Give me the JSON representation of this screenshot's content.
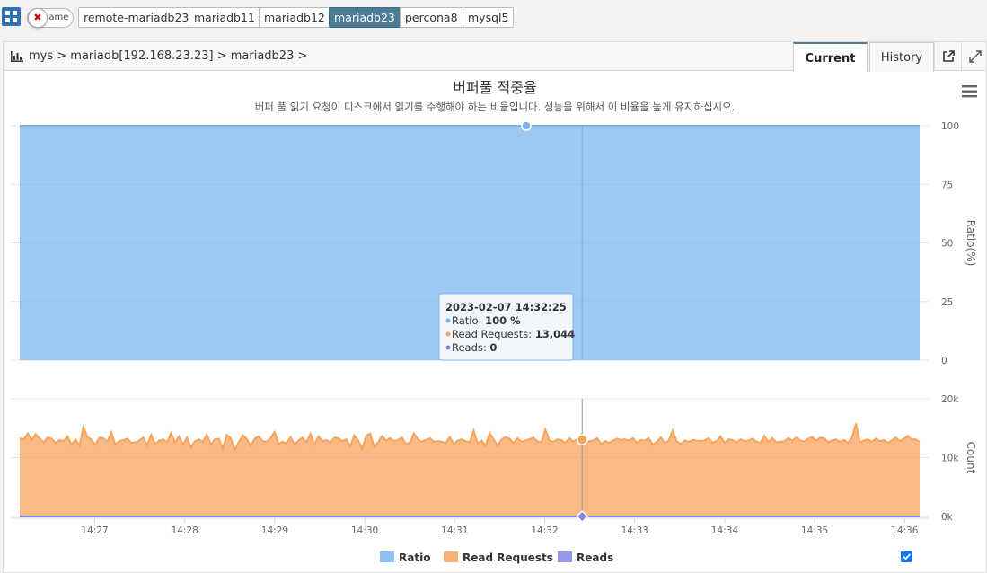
{
  "instances": {
    "name_toggle_label": "name",
    "items": [
      "remote-mariadb23",
      "mariadb11",
      "mariadb12",
      "mariadb23",
      "percona8",
      "mysql5"
    ],
    "active": "mariadb23"
  },
  "breadcrumb": "mys > mariadb[192.168.23.23] > mariadb23 >",
  "tabs": {
    "current": "Current",
    "history": "History"
  },
  "chart_data": {
    "type": "area",
    "title": "버퍼풀 적중율",
    "subtitle": "버퍼 풀 읽기 요청이 디스크에서 읽기를 수행해야 하는 비율입니다. 성능을 위해서 이 비율을 높게 유지하십시오.",
    "x_ticks": [
      "14:27",
      "14:28",
      "14:29",
      "14:30",
      "14:31",
      "14:32",
      "14:33",
      "14:34",
      "14:35",
      "14:36"
    ],
    "x_start": "14:26:10",
    "x_end": "14:36:10",
    "panes": [
      {
        "ylabel": "Ratio(%)",
        "ylim": [
          0,
          100
        ],
        "y_ticks": [
          "100",
          "75",
          "50",
          "25",
          "0"
        ],
        "series": [
          "Ratio"
        ]
      },
      {
        "ylabel": "Count",
        "ylim": [
          0,
          20000
        ],
        "y_ticks": [
          "20k",
          "10k",
          "0k"
        ],
        "series": [
          "Read Requests",
          "Reads"
        ]
      }
    ],
    "series": [
      {
        "name": "Ratio",
        "color": "#7cb5ec",
        "pane": 0,
        "values": [
          100
        ]
      },
      {
        "name": "Read Requests",
        "color": "#f7a35c",
        "pane": 1,
        "values": [
          13300,
          13100,
          14100,
          13000,
          14000,
          13200,
          12600,
          13400,
          13200,
          12500,
          13000,
          12800,
          13600,
          12200,
          13100,
          12000,
          15200,
          13500,
          13000,
          12200,
          13400,
          13300,
          12700,
          14300,
          12200,
          12800,
          13000,
          13200,
          12500,
          12600,
          12900,
          13400,
          12100,
          13900,
          12300,
          12900,
          13100,
          12600,
          14200,
          12500,
          13600,
          12200,
          13400,
          11700,
          12800,
          13100,
          12700,
          13900,
          12200,
          13100,
          13200,
          11500,
          13900,
          13300,
          11300,
          12600,
          13800,
          13200,
          11900,
          13200,
          13600,
          12800,
          12700,
          13300,
          14400,
          12300,
          12700,
          12400,
          13500,
          12200,
          12900,
          13400,
          12600,
          14000,
          12200,
          13600,
          12800,
          13000,
          12500,
          13400,
          13300,
          12800,
          13100,
          11900,
          13800,
          12900,
          11500,
          13700,
          14100,
          11800,
          12600,
          13700,
          12900,
          13300,
          12800,
          13000,
          13400,
          12300,
          12600,
          14100,
          13100,
          12700,
          13000,
          13300,
          12700,
          12800,
          12700,
          12500,
          13500,
          12300,
          12900,
          13100,
          12800,
          12600,
          14600,
          12400,
          12900,
          12000,
          14200,
          13100,
          12000,
          13100,
          13500,
          13200,
          12500,
          13300,
          12700,
          12900,
          13100,
          13400,
          12800,
          12600,
          14800,
          12900,
          12700,
          13100,
          13000,
          12500,
          13300,
          12700,
          13100,
          13900,
          12400,
          12800,
          12900,
          13300,
          12300,
          12800,
          12500,
          12900,
          13200,
          13000,
          13100,
          12900,
          13300,
          12500,
          13000,
          12900,
          13300,
          12200,
          12700,
          13400,
          12500,
          12900,
          14600,
          12800,
          12300,
          12900,
          12700,
          13000,
          12900,
          12800,
          12900,
          13300,
          12500,
          12800,
          13600,
          12500,
          13100,
          13000,
          12600,
          13100,
          12800,
          12900,
          13200,
          12700,
          12500,
          13700,
          12600,
          13300,
          12600,
          12700,
          12800,
          13300,
          12900,
          13400,
          12900,
          12700,
          13200,
          13500,
          12900,
          13400,
          13300,
          12600,
          12900,
          13100,
          12700,
          13000,
          12500,
          13400,
          15800,
          12600,
          12900,
          13100,
          12700,
          13200,
          12800,
          13000,
          12500,
          12900,
          13400,
          12800,
          13200,
          13700,
          13100,
          13100,
          12700
        ]
      },
      {
        "name": "Reads",
        "color": "#8085e9",
        "pane": 1,
        "values": [
          0
        ]
      }
    ],
    "tooltip": {
      "time": "2023-02-07 14:32:25",
      "x": "14:32:25",
      "rows": [
        {
          "label": "Ratio: ",
          "value": "100 %",
          "color": "#7cb5ec"
        },
        {
          "label": "Read Requests: ",
          "value": "13,044",
          "color": "#f7a35c"
        },
        {
          "label": "Reads: ",
          "value": "0",
          "color": "#8085e9"
        }
      ]
    },
    "legend": {
      "placement": "bottom-center",
      "items": [
        "Ratio",
        "Read Requests",
        "Reads"
      ]
    }
  }
}
